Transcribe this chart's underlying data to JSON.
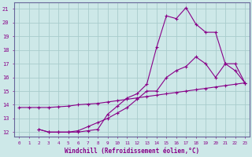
{
  "xlabel": "Windchill (Refroidissement éolien,°C)",
  "bg_color": "#cde8e8",
  "grid_color": "#a8cccc",
  "line_color": "#880088",
  "xlim": [
    -0.5,
    23.5
  ],
  "ylim": [
    11.7,
    21.5
  ],
  "xticks": [
    0,
    1,
    2,
    3,
    4,
    5,
    6,
    7,
    8,
    9,
    10,
    11,
    12,
    13,
    14,
    15,
    16,
    17,
    18,
    19,
    20,
    21,
    22,
    23
  ],
  "yticks": [
    12,
    13,
    14,
    15,
    16,
    17,
    18,
    19,
    20,
    21
  ],
  "lines": [
    {
      "x": [
        0,
        1,
        2,
        3,
        4,
        5,
        6,
        7,
        8,
        9,
        10,
        11,
        12,
        13,
        14,
        15,
        16,
        17,
        18,
        19,
        20,
        21,
        22,
        23
      ],
      "y": [
        13.8,
        13.8,
        13.8,
        13.8,
        13.85,
        13.9,
        14.0,
        14.05,
        14.1,
        14.2,
        14.3,
        14.4,
        14.5,
        14.6,
        14.7,
        14.8,
        14.9,
        15.0,
        15.1,
        15.2,
        15.3,
        15.4,
        15.5,
        15.6
      ]
    },
    {
      "x": [
        2,
        3,
        4,
        5,
        6,
        7,
        8,
        9,
        10,
        11,
        12,
        13,
        14,
        15,
        16,
        17,
        18,
        19,
        20,
        21,
        22,
        23
      ],
      "y": [
        12.2,
        12.0,
        12.0,
        12.0,
        12.1,
        12.4,
        12.7,
        13.0,
        13.4,
        13.8,
        14.4,
        15.0,
        15.0,
        16.0,
        16.5,
        16.8,
        17.5,
        17.0,
        16.0,
        17.0,
        16.5,
        15.6
      ]
    },
    {
      "x": [
        2,
        3,
        4,
        5,
        6,
        7,
        8,
        9,
        10,
        11,
        12,
        13,
        14,
        15,
        16,
        17,
        18,
        19,
        20,
        21,
        22,
        23
      ],
      "y": [
        12.2,
        12.0,
        12.0,
        12.0,
        12.0,
        12.1,
        12.2,
        13.3,
        13.9,
        14.5,
        14.8,
        15.5,
        18.2,
        20.5,
        20.3,
        21.1,
        19.9,
        19.3,
        19.3,
        17.0,
        17.0,
        15.6
      ]
    }
  ]
}
